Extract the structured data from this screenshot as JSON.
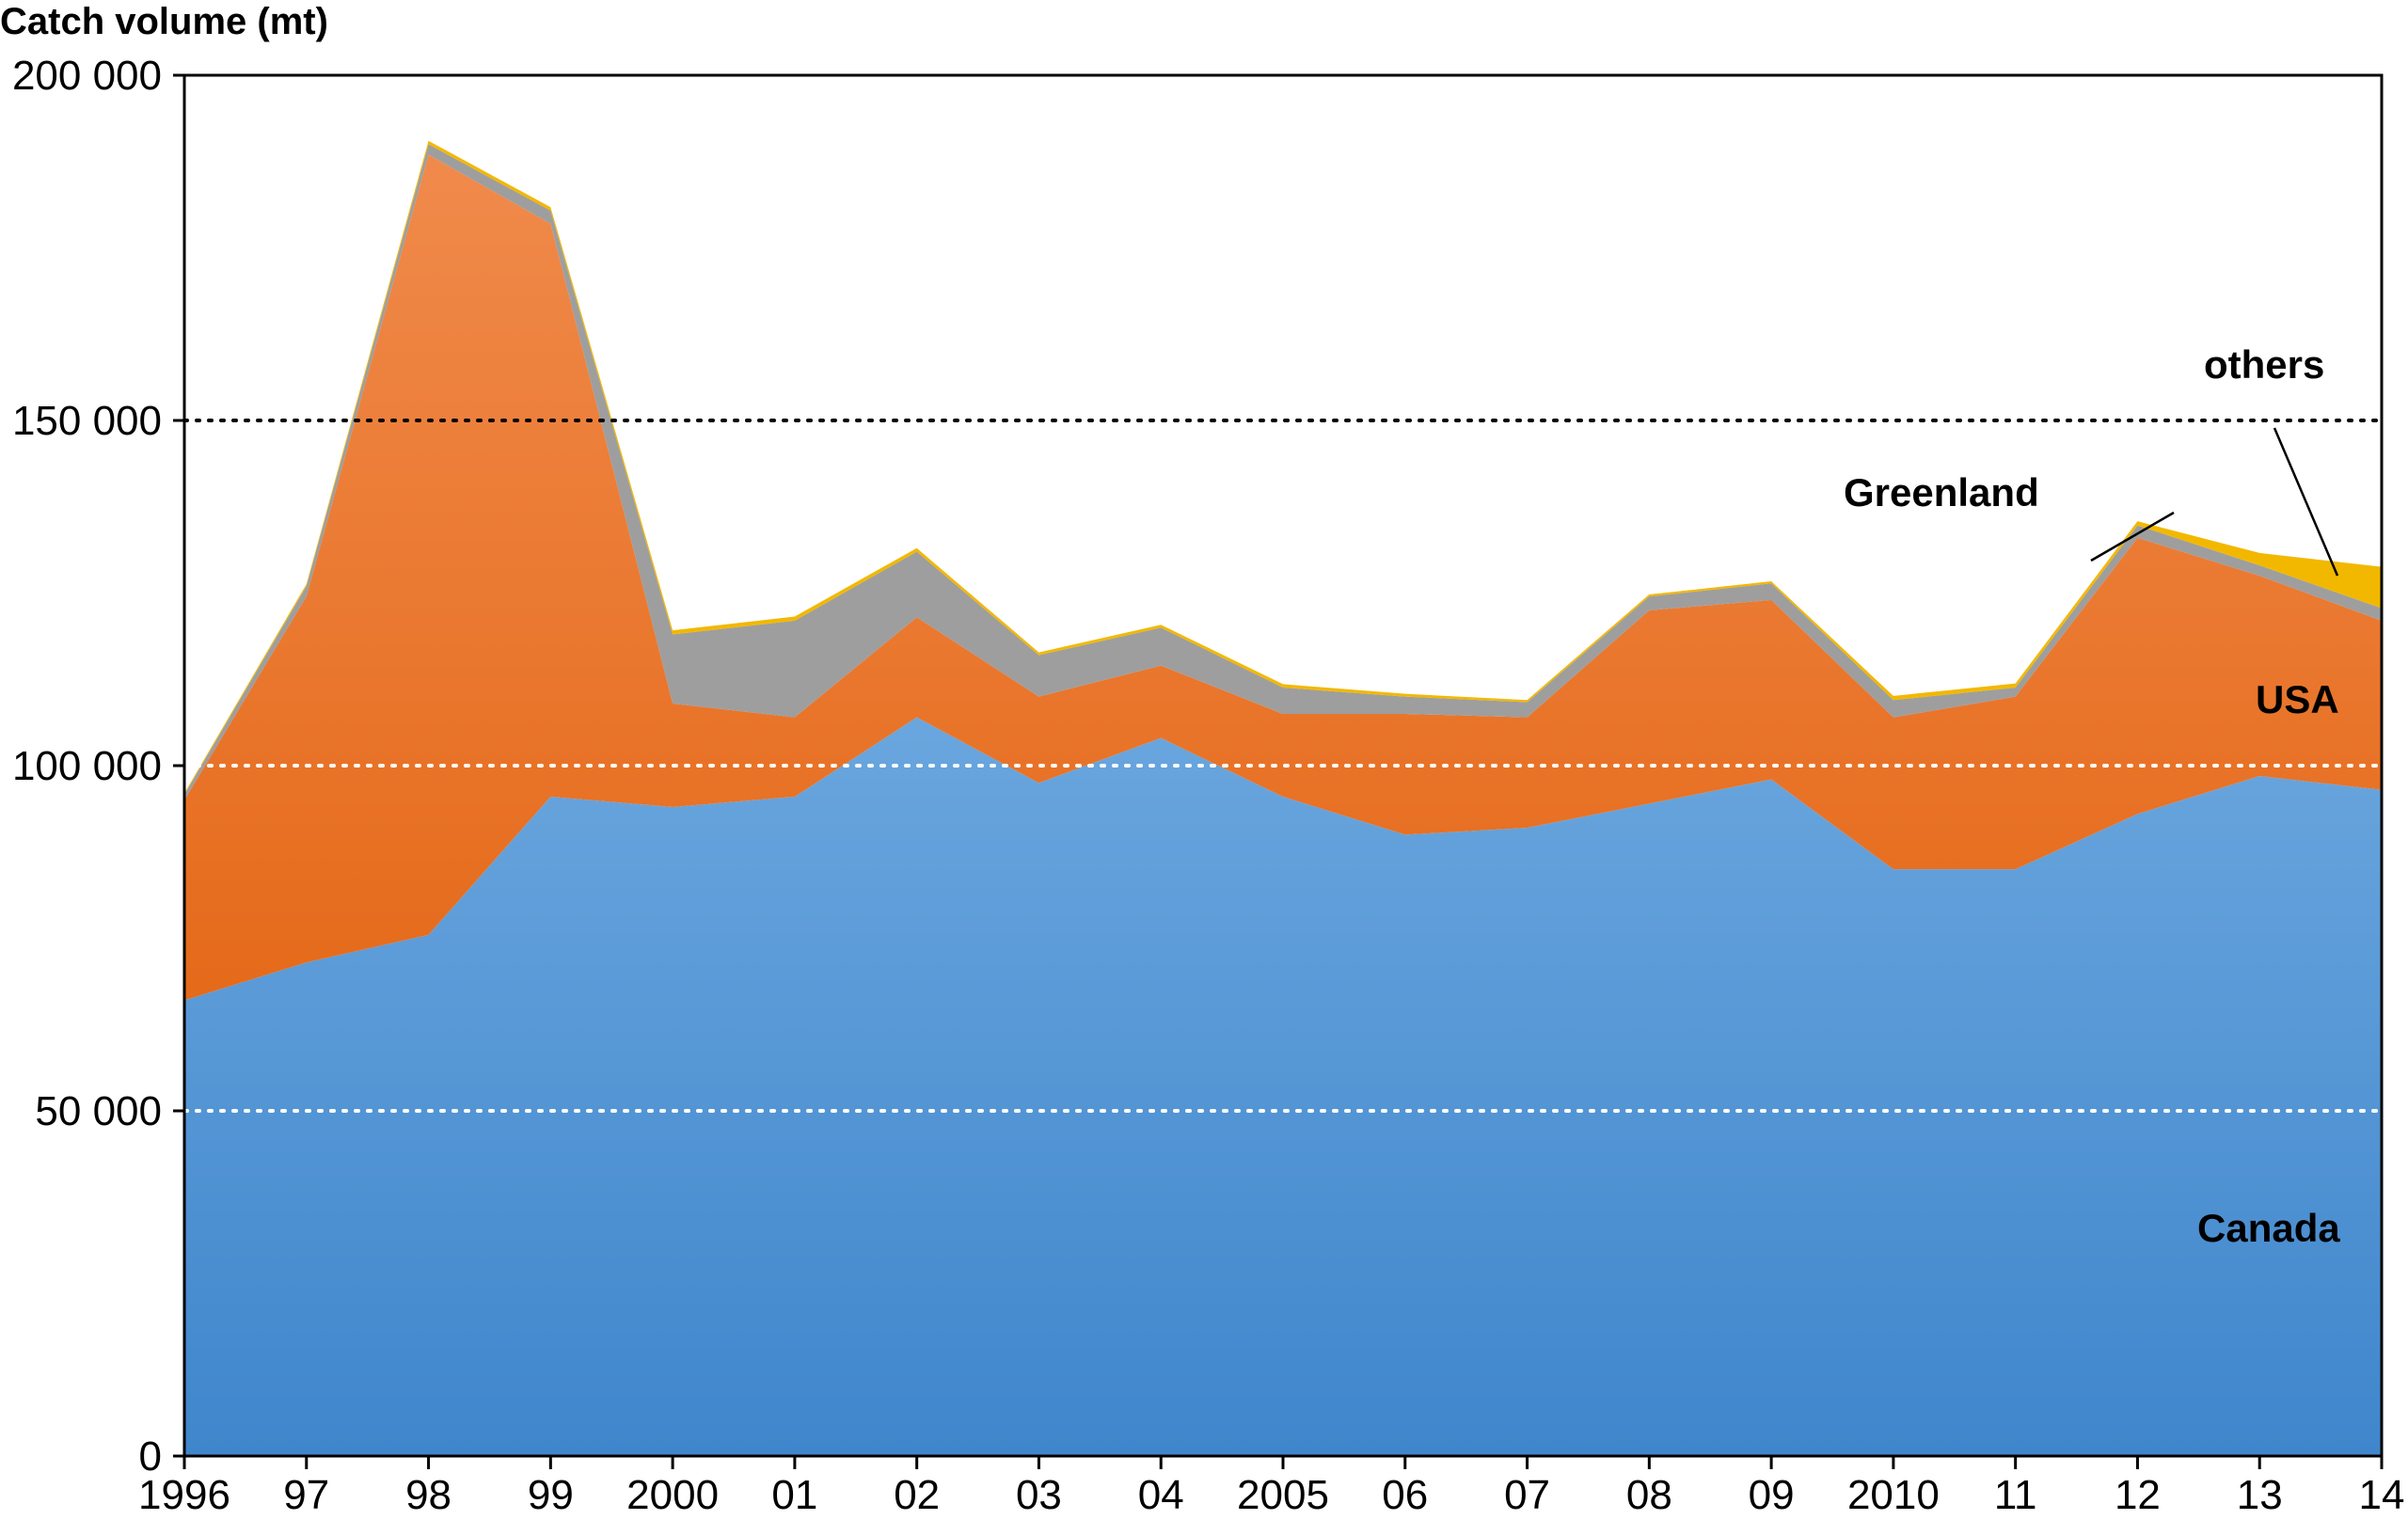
{
  "chart_data": {
    "type": "area",
    "stacked": true,
    "title": "",
    "xlabel": "",
    "ylabel": "Catch volume (mt)",
    "ylim": [
      0,
      200000
    ],
    "yticks": [
      0,
      50000,
      100000,
      150000,
      200000
    ],
    "ytick_labels": [
      "0",
      "50 000",
      "100 000",
      "150 000",
      "200 000"
    ],
    "grid": "horizontal dotted at 50 000, 100 000, 150 000",
    "x_labels": [
      "1996",
      "97",
      "98",
      "99",
      "2000",
      "01",
      "02",
      "03",
      "04",
      "2005",
      "06",
      "07",
      "08",
      "09",
      "2010",
      "11",
      "12",
      "13",
      "14"
    ],
    "x": [
      1996,
      1997,
      1998,
      1999,
      2000,
      2001,
      2002,
      2003,
      2004,
      2005,
      2006,
      2007,
      2008,
      2009,
      2010,
      2011,
      2012,
      2013,
      2014
    ],
    "series": [
      {
        "name": "Canada",
        "color_top": "#6aa6de",
        "color_bottom": "#3f86cc",
        "values": [
          66000,
          71500,
          75500,
          95500,
          94000,
          95500,
          107000,
          97500,
          104000,
          95500,
          90000,
          91000,
          94500,
          98000,
          85000,
          85000,
          93000,
          98500,
          96500
        ]
      },
      {
        "name": "USA",
        "color_top": "#f08a4b",
        "color_bottom": "#e56a1a",
        "values": [
          29000,
          53000,
          113000,
          83000,
          15000,
          11500,
          14500,
          12500,
          10500,
          12000,
          17500,
          16000,
          28000,
          26000,
          22000,
          25000,
          40000,
          29000,
          24500
        ]
      },
      {
        "name": "Greenland",
        "color": "#9e9e9e",
        "values": [
          800,
          1500,
          1500,
          1900,
          10000,
          14000,
          9500,
          6000,
          5500,
          3800,
          2500,
          2200,
          2000,
          2400,
          2500,
          1300,
          1800,
          1500,
          1800
        ]
      },
      {
        "name": "others",
        "color": "#f2b800",
        "values": [
          200,
          300,
          500,
          500,
          600,
          600,
          500,
          400,
          400,
          500,
          400,
          300,
          300,
          300,
          600,
          600,
          600,
          1800,
          6000
        ]
      }
    ],
    "annotations": [
      {
        "text": "Canada",
        "series": "Canada"
      },
      {
        "text": "USA",
        "series": "USA"
      },
      {
        "text": "Greenland",
        "series": "Greenland"
      },
      {
        "text": "others",
        "series": "others"
      }
    ]
  }
}
